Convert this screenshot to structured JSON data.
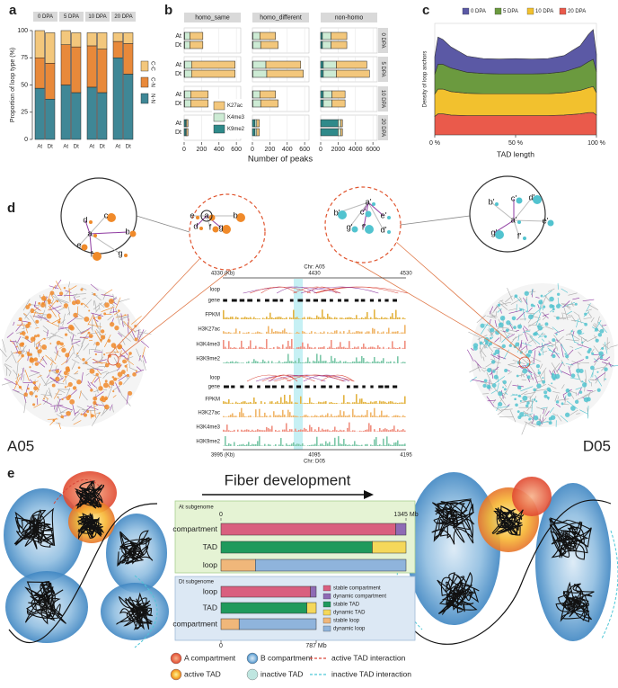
{
  "chart_data": [
    {
      "type": "stacked-bar",
      "ylabel": "Proportion of loop type (%)",
      "ylim": [
        0,
        100
      ],
      "yticks": [
        0,
        25,
        50,
        75,
        100
      ],
      "facets": [
        "0 DPA",
        "5 DPA",
        "10 DPA",
        "20 DPA"
      ],
      "categories": [
        "At",
        "Dt"
      ],
      "series": [
        {
          "name": "N-N",
          "color": "#3f8796",
          "values": [
            [
              47,
              37
            ],
            [
              50,
              43
            ],
            [
              48,
              43
            ],
            [
              75,
              60
            ]
          ]
        },
        {
          "name": "C-N",
          "color": "#e8893a",
          "values": [
            [
              28,
              33
            ],
            [
              37,
              42
            ],
            [
              38,
              40
            ],
            [
              15,
              28
            ]
          ]
        },
        {
          "name": "C-C",
          "color": "#f3c77c",
          "values": [
            [
              25,
              28
            ],
            [
              13,
              13
            ],
            [
              12,
              15
            ],
            [
              8,
              10
            ]
          ]
        }
      ]
    },
    {
      "type": "faceted-hbar",
      "xlabel": "Number of peaks",
      "columns": [
        {
          "name": "homo_same",
          "xlim": [
            0,
            650
          ],
          "xticks": [
            0,
            200,
            400,
            600
          ]
        },
        {
          "name": "homo_different",
          "xlim": [
            0,
            650
          ],
          "xticks": [
            0,
            200,
            400,
            600
          ]
        },
        {
          "name": "non-homo",
          "xlim": [
            0,
            6500
          ],
          "xticks": [
            0,
            2000,
            4000,
            6000
          ]
        }
      ],
      "rows": [
        "0 DPA",
        "5 DPA",
        "10 DPA",
        "20 DPA"
      ],
      "categories": [
        "At",
        "Dt"
      ],
      "series": [
        {
          "name": "K27ac",
          "color": "#f3c77c",
          "values": [
            [
              [
                150,
                150
              ],
              [
                500,
                500
              ],
              [
                200,
                200
              ],
              [
                15,
                15
              ]
            ],
            [
              [
                180,
                200
              ],
              [
                400,
                420
              ],
              [
                180,
                200
              ],
              [
                30,
                30
              ]
            ],
            [
              [
                1800,
                1800
              ],
              [
                3500,
                3800
              ],
              [
                1500,
                1500
              ],
              [
                200,
                200
              ]
            ]
          ]
        },
        {
          "name": "K4me3",
          "color": "#cdebd4",
          "values": [
            [
              [
                60,
                60
              ],
              [
                80,
                80
              ],
              [
                70,
                70
              ],
              [
                10,
                10
              ]
            ],
            [
              [
                80,
                90
              ],
              [
                150,
                160
              ],
              [
                80,
                90
              ],
              [
                20,
                20
              ]
            ],
            [
              [
                1000,
                1000
              ],
              [
                1500,
                1500
              ],
              [
                1000,
                1000
              ],
              [
                300,
                300
              ]
            ]
          ]
        },
        {
          "name": "K9me2",
          "color": "#2f8a8a",
          "values": [
            [
              [
                5,
                5
              ],
              [
                5,
                5
              ],
              [
                5,
                5
              ],
              [
                20,
                20
              ]
            ],
            [
              [
                5,
                5
              ],
              [
                5,
                5
              ],
              [
                5,
                5
              ],
              [
                30,
                30
              ]
            ],
            [
              [
                200,
                200
              ],
              [
                300,
                300
              ],
              [
                300,
                300
              ],
              [
                2000,
                2000
              ]
            ]
          ]
        }
      ]
    },
    {
      "type": "stacked-area",
      "xlabel": "TAD length",
      "ylabel": "Density of loop anchors",
      "x": [
        0,
        2,
        5,
        10,
        20,
        30,
        40,
        50,
        60,
        70,
        80,
        90,
        95,
        98,
        100
      ],
      "xlim": [
        0,
        100
      ],
      "xticks": [
        {
          "value": 0,
          "label": "0 %"
        },
        {
          "value": 50,
          "label": "50 %"
        },
        {
          "value": 100,
          "label": "100 %"
        }
      ],
      "ylim": [
        0,
        4.5
      ],
      "series": [
        {
          "name": "0 DPA",
          "color": "#5b59a5",
          "values": [
            0.7,
            1.1,
            1.0,
            0.85,
            0.65,
            0.6,
            0.6,
            0.62,
            0.6,
            0.6,
            0.65,
            0.85,
            1.1,
            1.2,
            0.7
          ]
        },
        {
          "name": "5 DPA",
          "color": "#6b9a3f",
          "values": [
            0.8,
            1.0,
            1.0,
            0.95,
            0.85,
            0.82,
            0.8,
            0.8,
            0.8,
            0.82,
            0.85,
            0.95,
            1.05,
            1.1,
            0.85
          ]
        },
        {
          "name": "10 DPA",
          "color": "#f2c12e",
          "values": [
            0.9,
            1.0,
            1.0,
            0.95,
            0.9,
            0.88,
            0.88,
            0.88,
            0.88,
            0.88,
            0.9,
            0.95,
            1.0,
            1.05,
            0.9
          ]
        },
        {
          "name": "20 DPA",
          "color": "#ea5a4b",
          "values": [
            0.75,
            0.85,
            0.85,
            0.8,
            0.78,
            0.78,
            0.78,
            0.78,
            0.78,
            0.78,
            0.8,
            0.85,
            0.9,
            0.9,
            0.8
          ]
        }
      ]
    },
    {
      "type": "stacked-hbar",
      "series": [
        {
          "name": "stable compartment",
          "color": "#d95f7f"
        },
        {
          "name": "dynamic compartment",
          "color": "#8e6bb5"
        },
        {
          "name": "stable TAD",
          "color": "#1f9a5c"
        },
        {
          "name": "dynamic TAD",
          "color": "#f5d85a"
        },
        {
          "name": "stable loop",
          "color": "#f0b77a"
        },
        {
          "name": "dynamic loop",
          "color": "#8fb4dc"
        }
      ],
      "panels": [
        {
          "title": "At subgenome",
          "xlim": [
            0,
            1345
          ],
          "xticks": [
            0,
            {
              "value": 1345,
              "label": "1345 Mb"
            }
          ],
          "categories": [
            "compartment",
            "TAD",
            "loop"
          ],
          "values": [
            [
              1270,
              null,
              null
            ],
            [
              75,
              null,
              null
            ],
            [
              null,
              1100,
              null
            ],
            [
              null,
              245,
              null
            ],
            [
              null,
              null,
              250
            ],
            [
              null,
              null,
              1095
            ]
          ]
        },
        {
          "title": "Dt subgenome",
          "xlim": [
            0,
            787
          ],
          "xticks": [
            0,
            {
              "value": 787,
              "label": "787 Mb"
            }
          ],
          "categories": [
            "loop",
            "TAD",
            "compartment"
          ],
          "values": [
            [
              740,
              null,
              null
            ],
            [
              47,
              null,
              null
            ],
            [
              null,
              710,
              null
            ],
            [
              null,
              77,
              null
            ],
            [
              null,
              null,
              150
            ],
            [
              null,
              null,
              637
            ]
          ]
        }
      ]
    }
  ],
  "figure": {
    "panel_labels": [
      "a",
      "b",
      "c",
      "d",
      "e"
    ],
    "d": {
      "left_label": "A05",
      "right_label": "D05",
      "inset_left_nodes": [
        "a",
        "b",
        "c",
        "d",
        "e",
        "f",
        "g"
      ],
      "zoom_left_nodes": [
        "e",
        "a",
        "b",
        "d",
        "f",
        "g"
      ],
      "zoom_right_nodes": [
        "a'",
        "c'",
        "b'",
        "e'",
        "g'",
        "f'",
        "d'"
      ],
      "inset_right_nodes": [
        "b'",
        "c'",
        "d'",
        "a'",
        "e'",
        "g'",
        "f'"
      ],
      "browser": {
        "top_chr": "Chr: A05",
        "top_ticks": [
          "4330 (Kb)",
          "4430",
          "4530"
        ],
        "tracks": [
          "loop",
          "gene",
          "FPKM",
          "H3K27ac",
          "H3K4me3",
          "H3K9me2"
        ],
        "bottom_tracks": [
          "loop",
          "gene",
          "FPKM",
          "H3K27ac",
          "H3K4me3",
          "H3K9me2"
        ],
        "bottom_ticks": [
          "3995 (Kb)",
          "4095",
          "4195"
        ],
        "bottom_chr": "Chr: D05"
      }
    },
    "e": {
      "title": "Fiber development",
      "legend": [
        "A compartment",
        "B compartment",
        "active TAD interaction",
        "active TAD",
        "inactive TAD",
        "inactive TAD interaction"
      ]
    }
  }
}
